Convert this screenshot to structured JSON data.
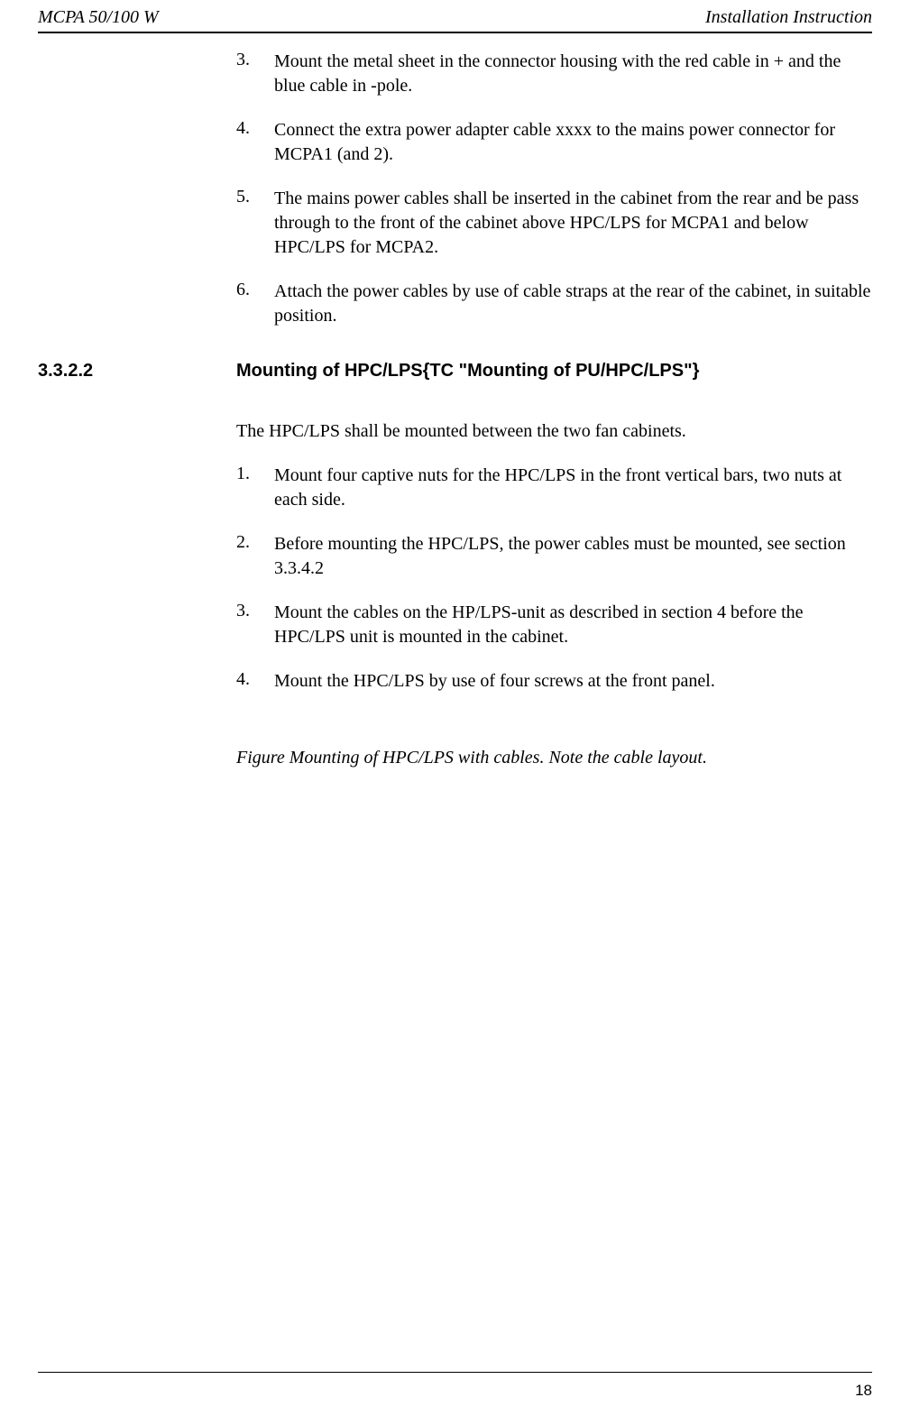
{
  "header": {
    "left": "MCPA 50/100 W",
    "right": "Installation Instruction"
  },
  "topList": [
    {
      "num": "3.",
      "text": "Mount the metal sheet in the connector housing with the red cable in + and the blue cable in -pole."
    },
    {
      "num": "4.",
      "text": "Connect the extra power adapter cable xxxx to the mains power connector for MCPA1 (and 2)."
    },
    {
      "num": "5.",
      "text": "The mains power cables shall be inserted in the cabinet from the rear and be pass through to the front of the cabinet above HPC/LPS for MCPA1 and below HPC/LPS for MCPA2."
    },
    {
      "num": "6.",
      "text": "Attach the power cables by use of cable straps at the rear of the cabinet, in suitable position."
    }
  ],
  "section": {
    "number": "3.3.2.2",
    "title": "Mounting of HPC/LPS{TC \"Mounting of PU/HPC/LPS\"}"
  },
  "intro": "The HPC/LPS shall be mounted between the two fan cabinets.",
  "subList": [
    {
      "num": "1.",
      "text": "Mount four captive nuts for the HPC/LPS in the front vertical bars, two nuts at each side."
    },
    {
      "num": "2.",
      "text": "Before mounting the HPC/LPS, the power cables must be mounted, see section 3.3.4.2"
    },
    {
      "num": "3.",
      "text": "Mount the cables on the HP/LPS-unit as described in section 4 before the HPC/LPS unit is mounted in the cabinet."
    },
    {
      "num": "4.",
      "text": "Mount the HPC/LPS by use of four screws at the front panel."
    }
  ],
  "figureCaption": "Figure   Mounting of HPC/LPS with cables. Note the cable layout.",
  "pageNumber": "18"
}
